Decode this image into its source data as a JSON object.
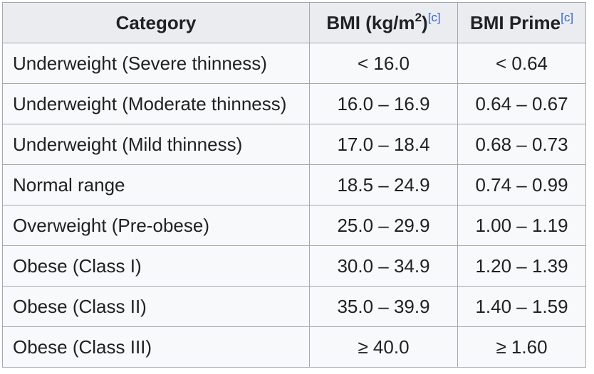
{
  "table": {
    "headers": {
      "category": "Category",
      "bmi_prefix": "BMI (kg/m",
      "bmi_sup": "2",
      "bmi_suffix": ")",
      "bmi_ref": "[c]",
      "prime": "BMI Prime",
      "prime_ref": "[c]"
    },
    "rows": [
      {
        "category": "Underweight (Severe thinness)",
        "bmi": "< 16.0",
        "prime": "< 0.64"
      },
      {
        "category": "Underweight (Moderate thinness)",
        "bmi": "16.0 – 16.9",
        "prime": "0.64 – 0.67"
      },
      {
        "category": "Underweight (Mild thinness)",
        "bmi": "17.0 – 18.4",
        "prime": "0.68 – 0.73"
      },
      {
        "category": "Normal range",
        "bmi": "18.5 – 24.9",
        "prime": "0.74 – 0.99"
      },
      {
        "category": "Overweight (Pre-obese)",
        "bmi": "25.0 – 29.9",
        "prime": "1.00 – 1.19"
      },
      {
        "category": "Obese (Class I)",
        "bmi": "30.0 – 34.9",
        "prime": "1.20 – 1.39"
      },
      {
        "category": "Obese (Class II)",
        "bmi": "35.0 – 39.9",
        "prime": "1.40 – 1.59"
      },
      {
        "category": "Obese (Class III)",
        "bmi": "≥ 40.0",
        "prime": "≥ 1.60"
      }
    ]
  }
}
